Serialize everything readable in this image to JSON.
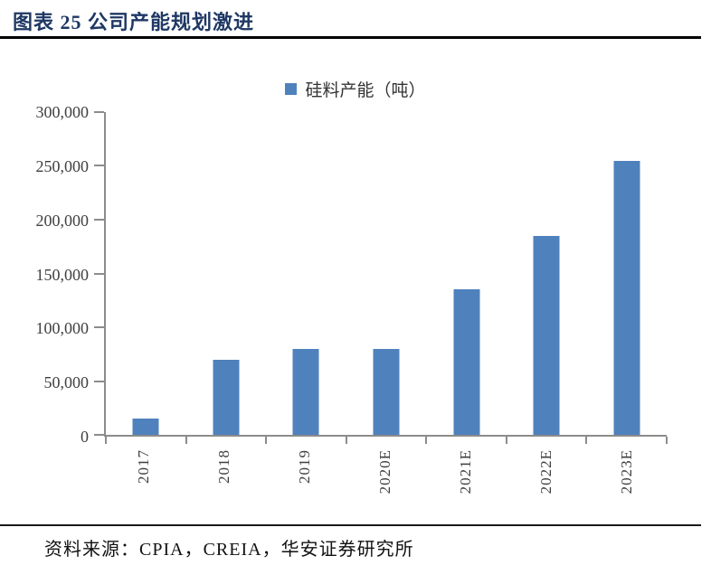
{
  "header": {
    "title": "图表 25 公司产能规划激进"
  },
  "chart_data": {
    "type": "bar",
    "title": "",
    "legend": [
      {
        "label": "硅料产能（吨）",
        "color": "#4f81bd"
      }
    ],
    "legend_position": "top-center",
    "categories": [
      "2017",
      "2018",
      "2019",
      "2020E",
      "2021E",
      "2022E",
      "2023E"
    ],
    "values": [
      15000,
      70000,
      80000,
      80000,
      135000,
      185000,
      255000
    ],
    "ylim": [
      0,
      300000
    ],
    "ytick_interval": 50000,
    "ytick_labels_top_to_bottom": [
      "300,000",
      "250,000",
      "200,000",
      "150,000",
      "100,000",
      "50,000",
      "0"
    ],
    "xlabel": "",
    "ylabel": "",
    "grid": false,
    "x_label_rotation_degrees": -90
  },
  "footer": {
    "source": "资料来源：CPIA，CREIA，华安证券研究所"
  },
  "colors": {
    "bar": "#4f81bd",
    "title": "#1f3864",
    "axis": "#8c8c8c",
    "tick_text": "#404040",
    "rule_top": "#000000",
    "rule_bottom": "#1a1a1a",
    "footer_text": "#111111"
  }
}
